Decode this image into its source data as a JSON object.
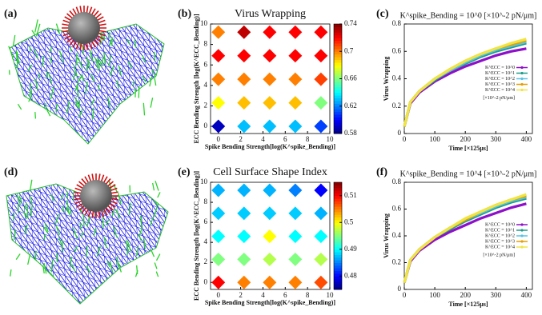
{
  "panel_labels": [
    "(a)",
    "(b)",
    "(c)",
    "(d)",
    "(e)",
    "(f)"
  ],
  "chart_data": [
    {
      "type": "scatter",
      "title": "Virus Wrapping",
      "xlabel": "Spike Bending Strength[log(K^spike_Bending)]",
      "ylabel": "ECC Bending Strength [log(K^ECC_Bending)]",
      "x": [
        0,
        2.3,
        4.6,
        6.9,
        9.2,
        0,
        2.3,
        4.6,
        6.9,
        9.2,
        0,
        2.3,
        4.6,
        6.9,
        9.2,
        0,
        2.3,
        4.6,
        6.9,
        9.2,
        0,
        2.3,
        4.6,
        6.9,
        9.2
      ],
      "y": [
        0,
        0,
        0,
        0,
        0,
        2.3,
        2.3,
        2.3,
        2.3,
        2.3,
        4.6,
        4.6,
        4.6,
        4.6,
        4.6,
        6.9,
        6.9,
        6.9,
        6.9,
        6.9,
        9.2,
        9.2,
        9.2,
        9.2,
        9.2
      ],
      "values": [
        0.59,
        0.63,
        0.63,
        0.63,
        0.61,
        0.68,
        0.69,
        0.69,
        0.69,
        0.66,
        0.7,
        0.7,
        0.7,
        0.7,
        0.71,
        0.72,
        0.72,
        0.72,
        0.72,
        0.72,
        0.7,
        0.73,
        0.72,
        0.72,
        0.72
      ],
      "colormap": "jet",
      "clim": [
        0.58,
        0.74
      ],
      "cticks": [
        0.58,
        0.62,
        0.66,
        0.7,
        0.74
      ],
      "xlim": [
        -0.7,
        10
      ],
      "ylim": [
        -0.7,
        10
      ],
      "xticks": [
        0,
        2,
        4,
        6,
        8,
        10
      ],
      "yticks": [
        0,
        2,
        4,
        6,
        8,
        10
      ]
    },
    {
      "type": "line",
      "title": "K^spike_Bending = 10^0 [×10^-2 pN/μm]",
      "xlabel": "Time [×125μs]",
      "ylabel": "Virus Wrapping",
      "x": [
        0,
        20,
        50,
        100,
        150,
        200,
        250,
        300,
        350,
        400
      ],
      "series": [
        {
          "name": "K^ECC = 10^0",
          "color": "#8e0fc9",
          "values": [
            0.05,
            0.22,
            0.3,
            0.38,
            0.44,
            0.49,
            0.53,
            0.57,
            0.6,
            0.62
          ]
        },
        {
          "name": "K^ECC = 10^1",
          "color": "#1c9d8c",
          "values": [
            0.05,
            0.23,
            0.31,
            0.39,
            0.46,
            0.51,
            0.56,
            0.6,
            0.63,
            0.66
          ]
        },
        {
          "name": "K^ECC = 10^2",
          "color": "#56c2e6",
          "values": [
            0.05,
            0.23,
            0.31,
            0.4,
            0.46,
            0.52,
            0.57,
            0.61,
            0.64,
            0.67
          ]
        },
        {
          "name": "K^ECC = 10^3",
          "color": "#e69f00",
          "values": [
            0.05,
            0.23,
            0.31,
            0.4,
            0.47,
            0.53,
            0.58,
            0.62,
            0.65,
            0.68
          ]
        },
        {
          "name": "K^ECC = 10^4",
          "color": "#f0e442",
          "values": [
            0.05,
            0.23,
            0.31,
            0.4,
            0.47,
            0.53,
            0.58,
            0.62,
            0.66,
            0.69
          ]
        }
      ],
      "legend_note": "[×10^-2 pN/μm]",
      "legend": "center right",
      "xlim": [
        0,
        420
      ],
      "ylim": [
        0,
        0.8
      ],
      "xticks": [
        0,
        100,
        200,
        300,
        400
      ],
      "yticks": [
        0,
        0.2,
        0.4,
        0.6,
        0.8
      ]
    },
    {
      "type": "scatter",
      "title": "Cell Surface Shape Index",
      "xlabel": "Spike Bending Strength[log(K^spike_Bending)]",
      "ylabel": "ECC Bending Strength [log(K^ECC_Bending)]",
      "x": [
        0,
        2.3,
        4.6,
        6.9,
        9.2,
        0,
        2.3,
        4.6,
        6.9,
        9.2,
        0,
        2.3,
        4.6,
        6.9,
        9.2,
        0,
        2.3,
        4.6,
        6.9,
        9.2,
        0,
        2.3,
        4.6,
        6.9,
        9.2
      ],
      "y": [
        0,
        0,
        0,
        0,
        0,
        2.3,
        2.3,
        2.3,
        2.3,
        2.3,
        4.6,
        4.6,
        4.6,
        4.6,
        4.6,
        6.9,
        6.9,
        6.9,
        6.9,
        6.9,
        9.2,
        9.2,
        9.2,
        9.2,
        9.2
      ],
      "values": [
        0.51,
        0.505,
        0.505,
        0.505,
        0.507,
        0.495,
        0.495,
        0.497,
        0.495,
        0.497,
        0.49,
        0.49,
        0.5,
        0.49,
        0.49,
        0.488,
        0.488,
        0.488,
        0.488,
        0.487,
        0.487,
        0.487,
        0.487,
        0.485,
        0.48
      ],
      "colormap": "jet",
      "clim": [
        0.475,
        0.515
      ],
      "cticks": [
        0.48,
        0.49,
        0.5,
        0.51
      ],
      "xlim": [
        -0.7,
        10
      ],
      "ylim": [
        -0.7,
        10
      ],
      "xticks": [
        0,
        2,
        4,
        6,
        8,
        10
      ],
      "yticks": [
        0,
        2,
        4,
        6,
        8,
        10
      ]
    },
    {
      "type": "line",
      "title": "K^spike_Bending = 10^4 [×10^-2 pN/μm]",
      "xlabel": "Time [×125μs]",
      "ylabel": "Virus Wrapping",
      "x": [
        0,
        20,
        50,
        100,
        150,
        200,
        250,
        300,
        350,
        400
      ],
      "series": [
        {
          "name": "K^ECC = 10^0",
          "color": "#8e0fc9",
          "values": [
            0.05,
            0.21,
            0.29,
            0.37,
            0.43,
            0.48,
            0.53,
            0.57,
            0.61,
            0.64
          ]
        },
        {
          "name": "K^ECC = 10^1",
          "color": "#1c9d8c",
          "values": [
            0.05,
            0.22,
            0.3,
            0.39,
            0.45,
            0.51,
            0.56,
            0.61,
            0.65,
            0.68
          ]
        },
        {
          "name": "K^ECC = 10^2",
          "color": "#56c2e6",
          "values": [
            0.05,
            0.22,
            0.3,
            0.39,
            0.46,
            0.52,
            0.57,
            0.62,
            0.66,
            0.69
          ]
        },
        {
          "name": "K^ECC = 10^3",
          "color": "#e69f00",
          "values": [
            0.05,
            0.22,
            0.3,
            0.39,
            0.46,
            0.52,
            0.58,
            0.63,
            0.67,
            0.7
          ]
        },
        {
          "name": "K^ECC = 10^4",
          "color": "#f0e442",
          "values": [
            0.05,
            0.22,
            0.3,
            0.39,
            0.46,
            0.53,
            0.58,
            0.63,
            0.67,
            0.71
          ]
        }
      ],
      "legend_note": "[×10^-2 pN/μm]",
      "legend": "center right",
      "xlim": [
        0,
        420
      ],
      "ylim": [
        0,
        0.8
      ],
      "xticks": [
        0,
        100,
        200,
        300,
        400
      ],
      "yticks": [
        0,
        0.2,
        0.4,
        0.6,
        0.8
      ]
    }
  ]
}
